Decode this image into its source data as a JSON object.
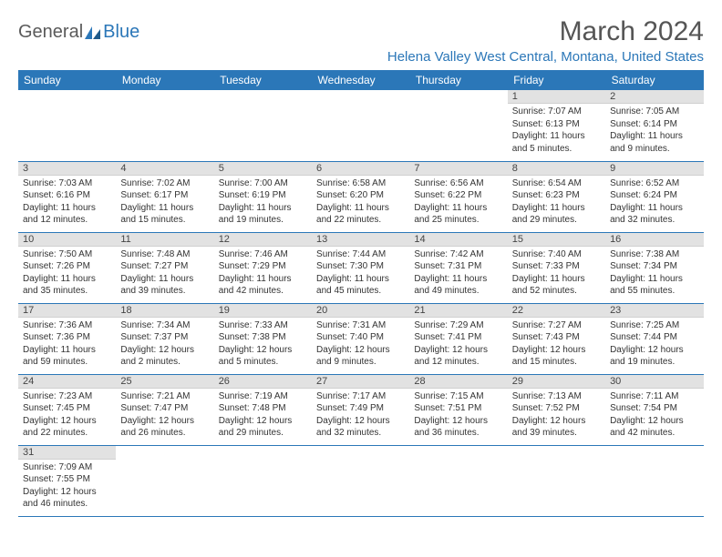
{
  "logo": {
    "text1": "General",
    "text2": "Blue"
  },
  "title": "March 2024",
  "location": "Helena Valley West Central, Montana, United States",
  "day_headers": [
    "Sunday",
    "Monday",
    "Tuesday",
    "Wednesday",
    "Thursday",
    "Friday",
    "Saturday"
  ],
  "colors": {
    "header_bg": "#2b77b8",
    "header_fg": "#ffffff",
    "daynum_bg": "#e2e2e2",
    "border": "#2b77b8",
    "logo_blue": "#2b77b8",
    "logo_gray": "#5a5a5a"
  },
  "weeks": [
    [
      {
        "n": "",
        "sr": "",
        "ss": "",
        "dl": ""
      },
      {
        "n": "",
        "sr": "",
        "ss": "",
        "dl": ""
      },
      {
        "n": "",
        "sr": "",
        "ss": "",
        "dl": ""
      },
      {
        "n": "",
        "sr": "",
        "ss": "",
        "dl": ""
      },
      {
        "n": "",
        "sr": "",
        "ss": "",
        "dl": ""
      },
      {
        "n": "1",
        "sr": "Sunrise: 7:07 AM",
        "ss": "Sunset: 6:13 PM",
        "dl": "Daylight: 11 hours and 5 minutes."
      },
      {
        "n": "2",
        "sr": "Sunrise: 7:05 AM",
        "ss": "Sunset: 6:14 PM",
        "dl": "Daylight: 11 hours and 9 minutes."
      }
    ],
    [
      {
        "n": "3",
        "sr": "Sunrise: 7:03 AM",
        "ss": "Sunset: 6:16 PM",
        "dl": "Daylight: 11 hours and 12 minutes."
      },
      {
        "n": "4",
        "sr": "Sunrise: 7:02 AM",
        "ss": "Sunset: 6:17 PM",
        "dl": "Daylight: 11 hours and 15 minutes."
      },
      {
        "n": "5",
        "sr": "Sunrise: 7:00 AM",
        "ss": "Sunset: 6:19 PM",
        "dl": "Daylight: 11 hours and 19 minutes."
      },
      {
        "n": "6",
        "sr": "Sunrise: 6:58 AM",
        "ss": "Sunset: 6:20 PM",
        "dl": "Daylight: 11 hours and 22 minutes."
      },
      {
        "n": "7",
        "sr": "Sunrise: 6:56 AM",
        "ss": "Sunset: 6:22 PM",
        "dl": "Daylight: 11 hours and 25 minutes."
      },
      {
        "n": "8",
        "sr": "Sunrise: 6:54 AM",
        "ss": "Sunset: 6:23 PM",
        "dl": "Daylight: 11 hours and 29 minutes."
      },
      {
        "n": "9",
        "sr": "Sunrise: 6:52 AM",
        "ss": "Sunset: 6:24 PM",
        "dl": "Daylight: 11 hours and 32 minutes."
      }
    ],
    [
      {
        "n": "10",
        "sr": "Sunrise: 7:50 AM",
        "ss": "Sunset: 7:26 PM",
        "dl": "Daylight: 11 hours and 35 minutes."
      },
      {
        "n": "11",
        "sr": "Sunrise: 7:48 AM",
        "ss": "Sunset: 7:27 PM",
        "dl": "Daylight: 11 hours and 39 minutes."
      },
      {
        "n": "12",
        "sr": "Sunrise: 7:46 AM",
        "ss": "Sunset: 7:29 PM",
        "dl": "Daylight: 11 hours and 42 minutes."
      },
      {
        "n": "13",
        "sr": "Sunrise: 7:44 AM",
        "ss": "Sunset: 7:30 PM",
        "dl": "Daylight: 11 hours and 45 minutes."
      },
      {
        "n": "14",
        "sr": "Sunrise: 7:42 AM",
        "ss": "Sunset: 7:31 PM",
        "dl": "Daylight: 11 hours and 49 minutes."
      },
      {
        "n": "15",
        "sr": "Sunrise: 7:40 AM",
        "ss": "Sunset: 7:33 PM",
        "dl": "Daylight: 11 hours and 52 minutes."
      },
      {
        "n": "16",
        "sr": "Sunrise: 7:38 AM",
        "ss": "Sunset: 7:34 PM",
        "dl": "Daylight: 11 hours and 55 minutes."
      }
    ],
    [
      {
        "n": "17",
        "sr": "Sunrise: 7:36 AM",
        "ss": "Sunset: 7:36 PM",
        "dl": "Daylight: 11 hours and 59 minutes."
      },
      {
        "n": "18",
        "sr": "Sunrise: 7:34 AM",
        "ss": "Sunset: 7:37 PM",
        "dl": "Daylight: 12 hours and 2 minutes."
      },
      {
        "n": "19",
        "sr": "Sunrise: 7:33 AM",
        "ss": "Sunset: 7:38 PM",
        "dl": "Daylight: 12 hours and 5 minutes."
      },
      {
        "n": "20",
        "sr": "Sunrise: 7:31 AM",
        "ss": "Sunset: 7:40 PM",
        "dl": "Daylight: 12 hours and 9 minutes."
      },
      {
        "n": "21",
        "sr": "Sunrise: 7:29 AM",
        "ss": "Sunset: 7:41 PM",
        "dl": "Daylight: 12 hours and 12 minutes."
      },
      {
        "n": "22",
        "sr": "Sunrise: 7:27 AM",
        "ss": "Sunset: 7:43 PM",
        "dl": "Daylight: 12 hours and 15 minutes."
      },
      {
        "n": "23",
        "sr": "Sunrise: 7:25 AM",
        "ss": "Sunset: 7:44 PM",
        "dl": "Daylight: 12 hours and 19 minutes."
      }
    ],
    [
      {
        "n": "24",
        "sr": "Sunrise: 7:23 AM",
        "ss": "Sunset: 7:45 PM",
        "dl": "Daylight: 12 hours and 22 minutes."
      },
      {
        "n": "25",
        "sr": "Sunrise: 7:21 AM",
        "ss": "Sunset: 7:47 PM",
        "dl": "Daylight: 12 hours and 26 minutes."
      },
      {
        "n": "26",
        "sr": "Sunrise: 7:19 AM",
        "ss": "Sunset: 7:48 PM",
        "dl": "Daylight: 12 hours and 29 minutes."
      },
      {
        "n": "27",
        "sr": "Sunrise: 7:17 AM",
        "ss": "Sunset: 7:49 PM",
        "dl": "Daylight: 12 hours and 32 minutes."
      },
      {
        "n": "28",
        "sr": "Sunrise: 7:15 AM",
        "ss": "Sunset: 7:51 PM",
        "dl": "Daylight: 12 hours and 36 minutes."
      },
      {
        "n": "29",
        "sr": "Sunrise: 7:13 AM",
        "ss": "Sunset: 7:52 PM",
        "dl": "Daylight: 12 hours and 39 minutes."
      },
      {
        "n": "30",
        "sr": "Sunrise: 7:11 AM",
        "ss": "Sunset: 7:54 PM",
        "dl": "Daylight: 12 hours and 42 minutes."
      }
    ],
    [
      {
        "n": "31",
        "sr": "Sunrise: 7:09 AM",
        "ss": "Sunset: 7:55 PM",
        "dl": "Daylight: 12 hours and 46 minutes."
      },
      {
        "n": "",
        "sr": "",
        "ss": "",
        "dl": ""
      },
      {
        "n": "",
        "sr": "",
        "ss": "",
        "dl": ""
      },
      {
        "n": "",
        "sr": "",
        "ss": "",
        "dl": ""
      },
      {
        "n": "",
        "sr": "",
        "ss": "",
        "dl": ""
      },
      {
        "n": "",
        "sr": "",
        "ss": "",
        "dl": ""
      },
      {
        "n": "",
        "sr": "",
        "ss": "",
        "dl": ""
      }
    ]
  ]
}
